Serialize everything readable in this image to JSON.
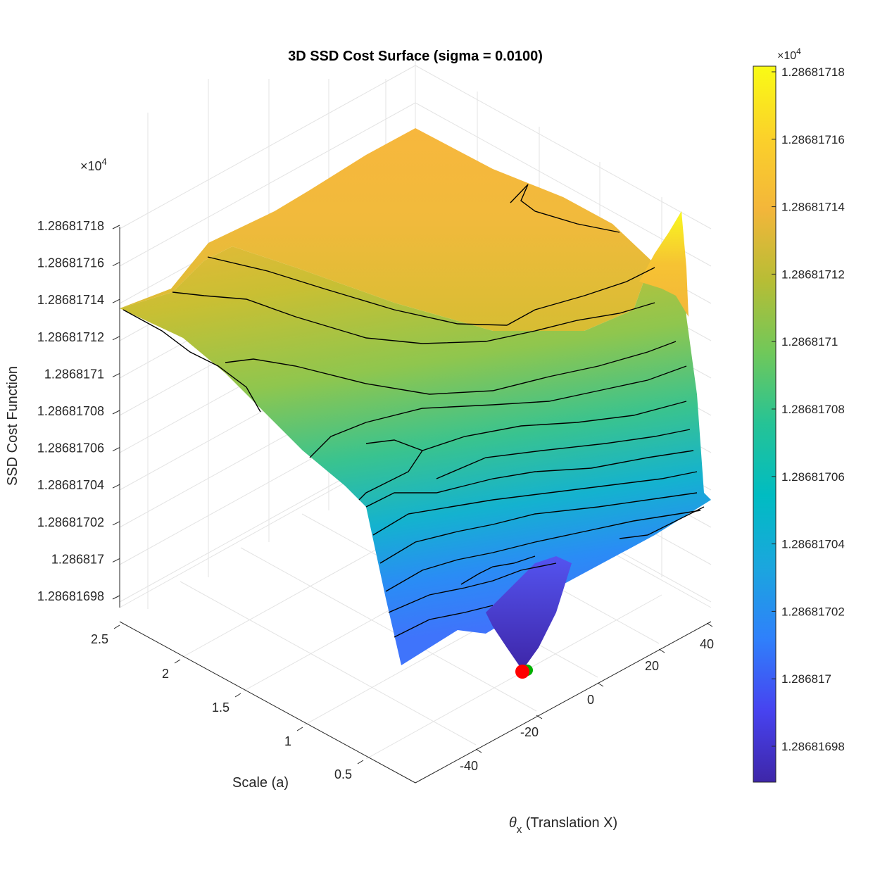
{
  "chart_data": {
    "type": "surface3d",
    "title": "3D SSD Cost Surface (sigma = 0.0100)",
    "xlabel_symbol": "θ",
    "xlabel_sub": "x",
    "xlabel_rest": " (Translation X)",
    "ylabel": "Scale (a)",
    "zlabel": "SSD Cost Function",
    "z_exponent_base": "×10",
    "z_exponent_power": "4",
    "x_ticks": [
      "-40",
      "-20",
      "0",
      "20",
      "40"
    ],
    "y_ticks": [
      "0.5",
      "1",
      "1.5",
      "2",
      "2.5"
    ],
    "z_ticks": [
      "1.28681698",
      "1.286817",
      "1.28681702",
      "1.28681704",
      "1.28681706",
      "1.28681708",
      "1.2868171",
      "1.28681712",
      "1.28681714",
      "1.28681716",
      "1.28681718"
    ],
    "colorbar_ticks": [
      "1.28681698",
      "1.286817",
      "1.28681702",
      "1.28681704",
      "1.28681706",
      "1.28681708",
      "1.2868171",
      "1.28681712",
      "1.28681714",
      "1.28681716",
      "1.28681718"
    ],
    "colorbar_exponent_base": "×10",
    "colorbar_exponent_power": "4",
    "colormap": [
      "#3e26a8",
      "#4743f0",
      "#2f80fb",
      "#1ba6de",
      "#00bcc2",
      "#25c396",
      "#70c85a",
      "#b7bd35",
      "#f3b63a",
      "#fbd12a",
      "#f9fb15"
    ],
    "minimum_markers": [
      {
        "color": "#ff0000",
        "label": "red marker"
      },
      {
        "color": "#00b000",
        "label": "green marker"
      }
    ],
    "x_range": [
      -50,
      50
    ],
    "y_range": [
      0.1,
      2.5
    ],
    "z_range": [
      12868.1697,
      12868.1718
    ],
    "grid": true
  }
}
